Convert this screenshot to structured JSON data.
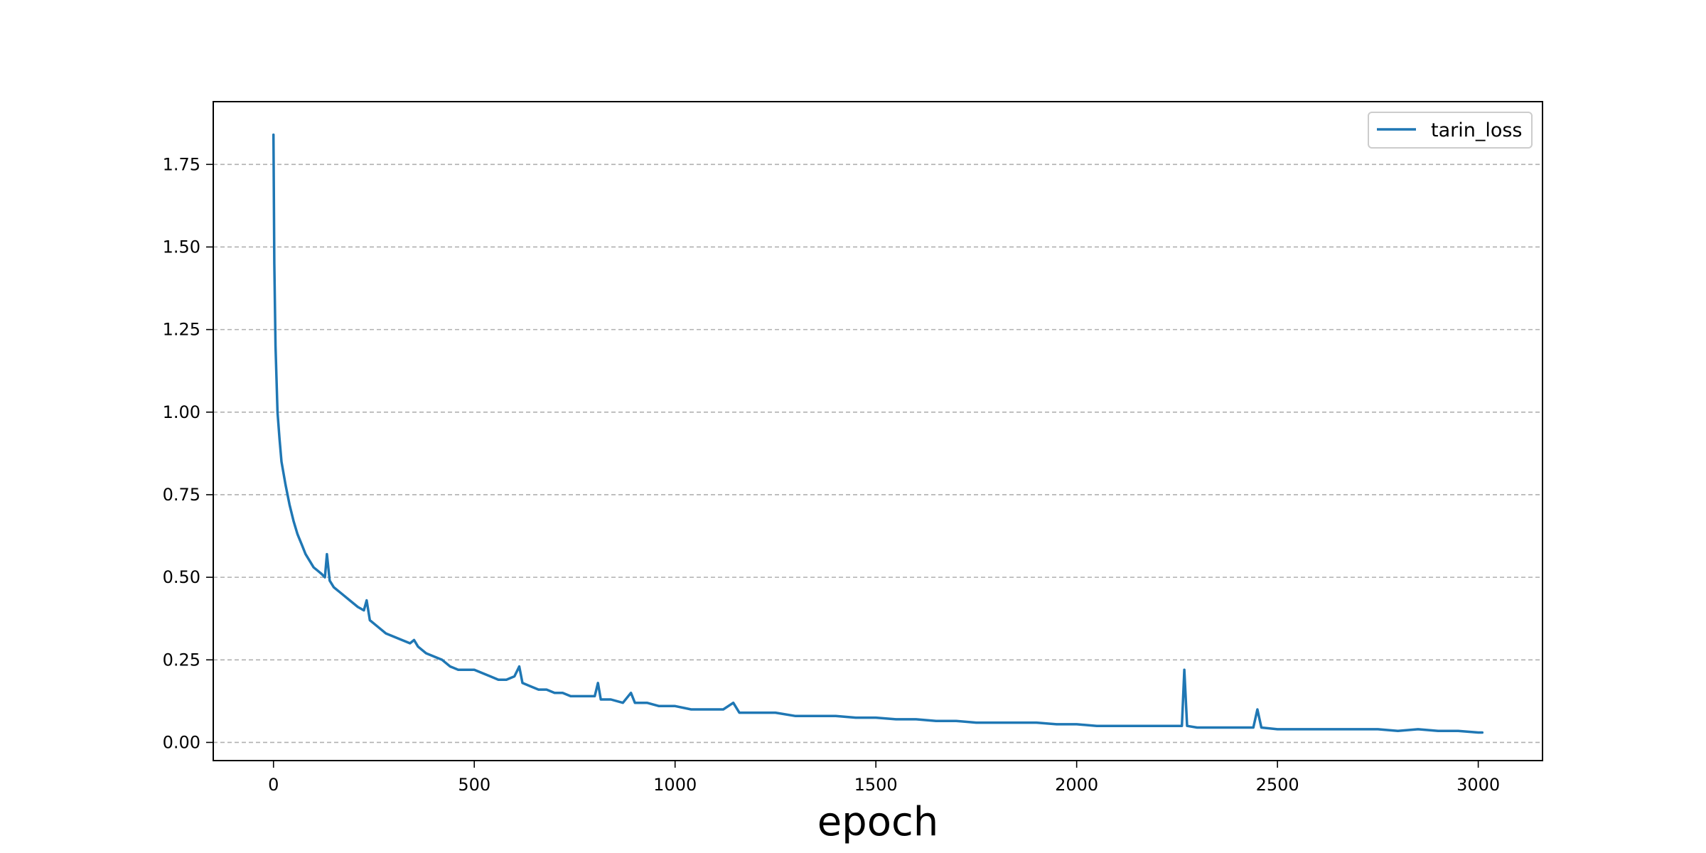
{
  "chart_data": {
    "type": "line",
    "title": "",
    "xlabel": "epoch",
    "ylabel": "",
    "xlim": [
      -150,
      3160
    ],
    "ylim": [
      -0.055,
      1.94
    ],
    "xticks": [
      0,
      500,
      1000,
      1500,
      2000,
      2500,
      3000
    ],
    "yticks": [
      0.0,
      0.25,
      0.5,
      0.75,
      1.0,
      1.25,
      1.5,
      1.75
    ],
    "xtick_labels": [
      "0",
      "500",
      "1000",
      "1500",
      "2000",
      "2500",
      "3000"
    ],
    "ytick_labels": [
      "0.00",
      "0.25",
      "0.50",
      "0.75",
      "1.00",
      "1.25",
      "1.50",
      "1.75"
    ],
    "grid": "y-dashed",
    "legend": {
      "placement": "upper-right",
      "entries": [
        "tarin_loss"
      ]
    },
    "series": [
      {
        "name": "tarin_loss",
        "color": "#1f77b4",
        "x": [
          0,
          2,
          5,
          10,
          15,
          20,
          30,
          40,
          50,
          60,
          70,
          80,
          90,
          100,
          110,
          120,
          128,
          133,
          140,
          150,
          170,
          190,
          210,
          225,
          232,
          240,
          260,
          280,
          300,
          320,
          340,
          350,
          360,
          380,
          400,
          420,
          440,
          460,
          480,
          500,
          520,
          540,
          560,
          580,
          600,
          612,
          620,
          640,
          660,
          680,
          700,
          720,
          740,
          760,
          780,
          800,
          808,
          815,
          840,
          870,
          890,
          900,
          930,
          960,
          1000,
          1040,
          1080,
          1120,
          1145,
          1160,
          1200,
          1250,
          1300,
          1350,
          1400,
          1450,
          1500,
          1550,
          1600,
          1650,
          1700,
          1750,
          1800,
          1850,
          1900,
          1950,
          2000,
          2050,
          2100,
          2150,
          2200,
          2250,
          2262,
          2268,
          2275,
          2300,
          2350,
          2400,
          2440,
          2450,
          2460,
          2500,
          2550,
          2600,
          2650,
          2700,
          2750,
          2800,
          2850,
          2900,
          2950,
          3000,
          3010
        ],
        "values": [
          1.84,
          1.45,
          1.2,
          1.0,
          0.92,
          0.85,
          0.78,
          0.72,
          0.67,
          0.63,
          0.6,
          0.57,
          0.55,
          0.53,
          0.52,
          0.51,
          0.5,
          0.57,
          0.49,
          0.47,
          0.45,
          0.43,
          0.41,
          0.4,
          0.43,
          0.37,
          0.35,
          0.33,
          0.32,
          0.31,
          0.3,
          0.31,
          0.29,
          0.27,
          0.26,
          0.25,
          0.23,
          0.22,
          0.22,
          0.22,
          0.21,
          0.2,
          0.19,
          0.19,
          0.2,
          0.23,
          0.18,
          0.17,
          0.16,
          0.16,
          0.15,
          0.15,
          0.14,
          0.14,
          0.14,
          0.14,
          0.18,
          0.13,
          0.13,
          0.12,
          0.15,
          0.12,
          0.12,
          0.11,
          0.11,
          0.1,
          0.1,
          0.1,
          0.12,
          0.09,
          0.09,
          0.09,
          0.08,
          0.08,
          0.08,
          0.075,
          0.075,
          0.07,
          0.07,
          0.065,
          0.065,
          0.06,
          0.06,
          0.06,
          0.06,
          0.055,
          0.055,
          0.05,
          0.05,
          0.05,
          0.05,
          0.05,
          0.05,
          0.22,
          0.05,
          0.045,
          0.045,
          0.045,
          0.045,
          0.1,
          0.045,
          0.04,
          0.04,
          0.04,
          0.04,
          0.04,
          0.04,
          0.035,
          0.04,
          0.035,
          0.035,
          0.03,
          0.03
        ]
      }
    ]
  }
}
